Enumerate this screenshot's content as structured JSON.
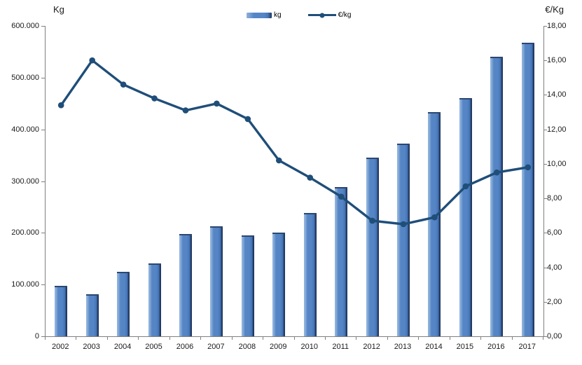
{
  "axes": {
    "left_title": "Kg",
    "right_title": "€/Kg"
  },
  "legend": {
    "kg_label": "kg",
    "eur_label": "€/kg"
  },
  "colors": {
    "background": "#FFFFFF",
    "bar_main": "#5585C5",
    "bar_highlight": "#8FB2DC",
    "bar_dark": "#4677B8",
    "bar_shadow": "#20355A",
    "bar_cap": "#2C4770",
    "line": "#1F4E79",
    "axis_line": "#808080",
    "tick_text": "#1A1A1A"
  },
  "chart_data": {
    "type": "bar",
    "combo": "bar+line",
    "title": "",
    "categories": [
      "2002",
      "2003",
      "2004",
      "2005",
      "2006",
      "2007",
      "2008",
      "2009",
      "2010",
      "2011",
      "2012",
      "2013",
      "2014",
      "2015",
      "2016",
      "2017"
    ],
    "series": [
      {
        "name": "kg",
        "type": "bar",
        "axis": "left",
        "values": [
          97000,
          81000,
          125000,
          141000,
          198000,
          213000,
          195000,
          201000,
          239000,
          289000,
          345000,
          373000,
          434000,
          460000,
          540000,
          568000
        ]
      },
      {
        "name": "€/kg",
        "type": "line",
        "axis": "right",
        "values": [
          13.4,
          16.0,
          14.6,
          13.8,
          13.1,
          13.5,
          12.6,
          10.2,
          9.2,
          8.1,
          6.7,
          6.5,
          6.9,
          8.7,
          9.5,
          9.8
        ]
      }
    ],
    "left_axis": {
      "title": "Kg",
      "min": 0,
      "max": 600000,
      "tick_step": 100000,
      "tick_labels": [
        "600.000",
        "500.000",
        "400.000",
        "300.000",
        "200.000",
        "100.000",
        "0"
      ]
    },
    "right_axis": {
      "title": "€/Kg",
      "min": 0,
      "max": 18,
      "tick_step": 2,
      "tick_labels": [
        "18,00",
        "16,00",
        "14,00",
        "12,00",
        "10,00",
        "8,00",
        "6,00",
        "4,00",
        "2,00",
        "0,00"
      ]
    },
    "legend_position": "top",
    "grid": false
  }
}
